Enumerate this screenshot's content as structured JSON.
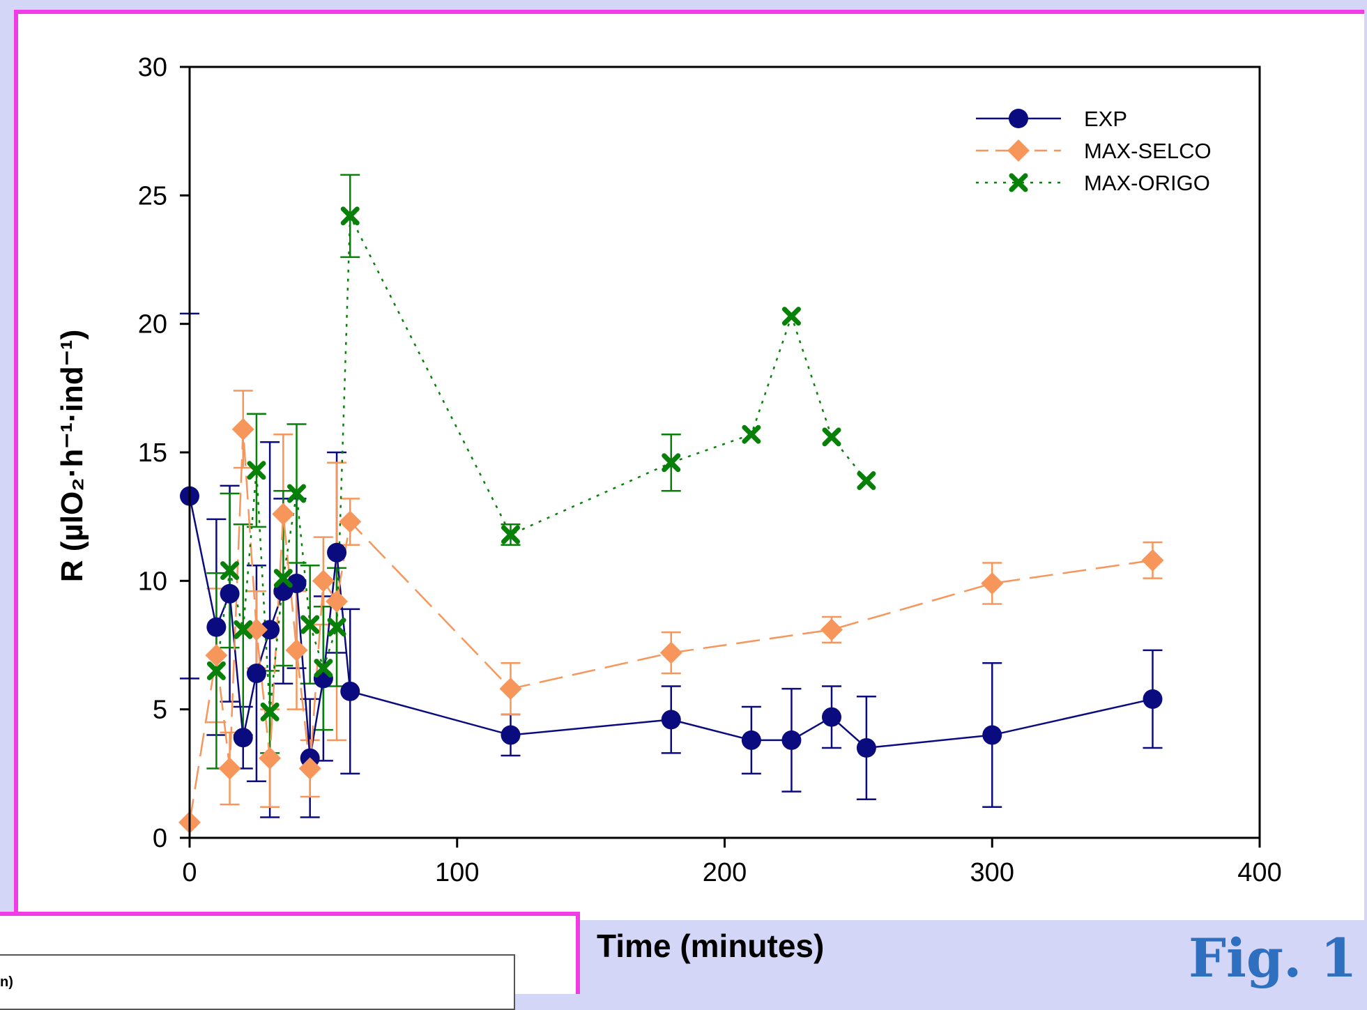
{
  "figure_label": "Fig. 1",
  "inset_text": "n)",
  "chart_data": {
    "type": "line",
    "xlabel": "Time (minutes)",
    "ylabel": "R (µlO₂·h⁻¹·ind⁻¹)",
    "xlim": [
      0,
      400
    ],
    "ylim": [
      0,
      30
    ],
    "x_ticks": [
      0,
      100,
      200,
      300,
      400
    ],
    "y_ticks": [
      0,
      5,
      10,
      15,
      20,
      25,
      30
    ],
    "grid": false,
    "legend_position": "top-right",
    "series": [
      {
        "name": "EXP",
        "color": "#0b0b80",
        "marker": "circle",
        "line_style": "solid",
        "x": [
          0,
          10,
          15,
          20,
          25,
          30,
          35,
          40,
          45,
          50,
          55,
          60,
          120,
          180,
          210,
          225,
          240,
          253,
          300,
          360
        ],
        "y": [
          13.3,
          8.2,
          9.5,
          3.9,
          6.4,
          8.1,
          9.6,
          9.9,
          3.1,
          6.2,
          11.1,
          5.7,
          4.0,
          4.6,
          3.8,
          3.8,
          4.7,
          3.5,
          4.0,
          5.4
        ],
        "err": [
          7.1,
          4.2,
          4.2,
          1.2,
          4.2,
          7.3,
          3.6,
          3.3,
          2.3,
          3.2,
          3.9,
          3.2,
          0.8,
          1.3,
          1.3,
          2.0,
          1.2,
          2.0,
          2.8,
          1.9
        ]
      },
      {
        "name": "MAX-SELCO",
        "color": "#f7965b",
        "marker": "diamond",
        "line_style": "dashed",
        "x": [
          0,
          10,
          15,
          20,
          25,
          30,
          35,
          40,
          45,
          50,
          55,
          60,
          120,
          180,
          240,
          300,
          360
        ],
        "y": [
          0.6,
          7.1,
          2.7,
          15.9,
          8.1,
          3.1,
          12.6,
          7.3,
          2.7,
          10.0,
          9.2,
          12.3,
          5.8,
          7.2,
          8.1,
          9.9,
          10.8
        ],
        "err": [
          0,
          2.6,
          1.4,
          1.5,
          1.5,
          1.9,
          3.1,
          2.3,
          1.1,
          1.7,
          5.4,
          0.9,
          1.0,
          0.8,
          0.5,
          0.8,
          0.7
        ]
      },
      {
        "name": "MAX-ORIGO",
        "color": "#078007",
        "marker": "x",
        "line_style": "dotted",
        "x": [
          10,
          15,
          20,
          25,
          30,
          35,
          40,
          45,
          50,
          55,
          60,
          120,
          180,
          210,
          225,
          240,
          253
        ],
        "y": [
          6.5,
          10.4,
          8.1,
          14.3,
          4.9,
          10.1,
          13.4,
          8.3,
          6.6,
          8.2,
          24.2,
          11.8,
          14.6,
          15.7,
          20.3,
          15.6,
          13.9
        ],
        "err": [
          3.8,
          3.0,
          4.1,
          2.2,
          1.6,
          3.4,
          2.7,
          2.3,
          2.4,
          2.3,
          1.6,
          0.4,
          1.1,
          0,
          0,
          0,
          0
        ]
      }
    ]
  }
}
